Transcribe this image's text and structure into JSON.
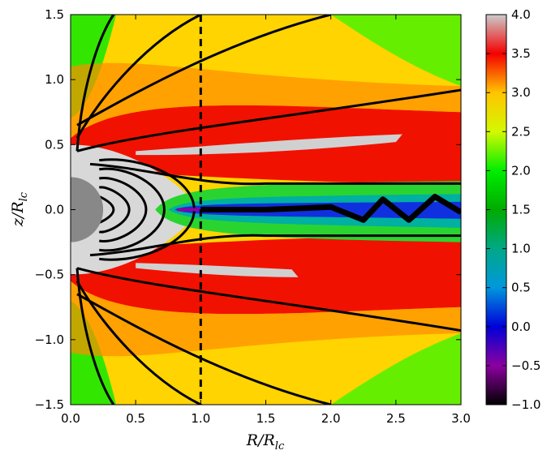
{
  "chart_data": {
    "type": "heatmap",
    "title": "",
    "xlabel": "R/R_lc",
    "ylabel": "z/R_lc",
    "xlabel_parts": {
      "base": "R/R",
      "sub": "lc"
    },
    "ylabel_parts": {
      "base": "z/R",
      "sub": "lc"
    },
    "xlim": [
      0.0,
      3.0
    ],
    "ylim": [
      -1.5,
      1.5
    ],
    "x_ticks": [
      0.0,
      0.5,
      1.0,
      1.5,
      2.0,
      2.5,
      3.0
    ],
    "x_tick_labels": [
      "0.0",
      "0.5",
      "1.0",
      "1.5",
      "2.0",
      "2.5",
      "3.0"
    ],
    "y_ticks": [
      -1.5,
      -1.0,
      -0.5,
      0.0,
      0.5,
      1.0,
      1.5
    ],
    "y_tick_labels": [
      "−1.5",
      "−1.0",
      "−0.5",
      "0.0",
      "0.5",
      "1.0",
      "1.5"
    ],
    "colorbar": {
      "range": [
        -1.0,
        4.0
      ],
      "ticks": [
        -1.0,
        -0.5,
        0.0,
        0.5,
        1.0,
        1.5,
        2.0,
        2.5,
        3.0,
        3.5,
        4.0
      ],
      "tick_labels": [
        "−1.0",
        "−0.5",
        "0.0",
        "0.5",
        "1.0",
        "1.5",
        "2.0",
        "2.5",
        "3.0",
        "3.5",
        "4.0"
      ],
      "colormap": "nipy_spectral",
      "colors": [
        "#000000",
        "#8c00a0",
        "#0000d8",
        "#0098dd",
        "#00a887",
        "#00ab00",
        "#00ee00",
        "#d4f800",
        "#ffc400",
        "#f40000",
        "#cccccc"
      ]
    },
    "light_cylinder_x": 1.0,
    "star_radius": 0.25,
    "star_color": "#888888",
    "field_lines_open": [
      {
        "footpoint_angle": 20,
        "x_exit": 0.33,
        "sign": 1
      },
      {
        "footpoint_angle": 30,
        "x_exit": 1.0,
        "sign": 1
      },
      {
        "footpoint_angle": 40,
        "x_exit": 2.0,
        "sign": 1
      },
      {
        "footpoint_angle": 48,
        "x_exit": 3.0,
        "z_exit": 0.92,
        "sign": 1
      },
      {
        "footpoint_angle": 20,
        "x_exit": 0.33,
        "sign": -1
      },
      {
        "footpoint_angle": 30,
        "x_exit": 1.0,
        "sign": -1
      },
      {
        "footpoint_angle": 40,
        "x_exit": 2.0,
        "sign": -1
      },
      {
        "footpoint_angle": 48,
        "x_exit": 3.0,
        "z_exit": -0.93,
        "sign": -1
      }
    ],
    "field_lines_closed_extent": [
      0.33,
      0.45,
      0.58,
      0.72,
      0.95
    ],
    "separatrix_z_far": [
      0.2,
      -0.2
    ],
    "current_sheet": [
      [
        1.0,
        0.0
      ],
      [
        1.5,
        0.0
      ],
      [
        2.0,
        0.02
      ],
      [
        2.25,
        -0.08
      ],
      [
        2.4,
        0.08
      ],
      [
        2.6,
        -0.08
      ],
      [
        2.8,
        0.1
      ],
      [
        3.0,
        -0.02
      ]
    ]
  }
}
